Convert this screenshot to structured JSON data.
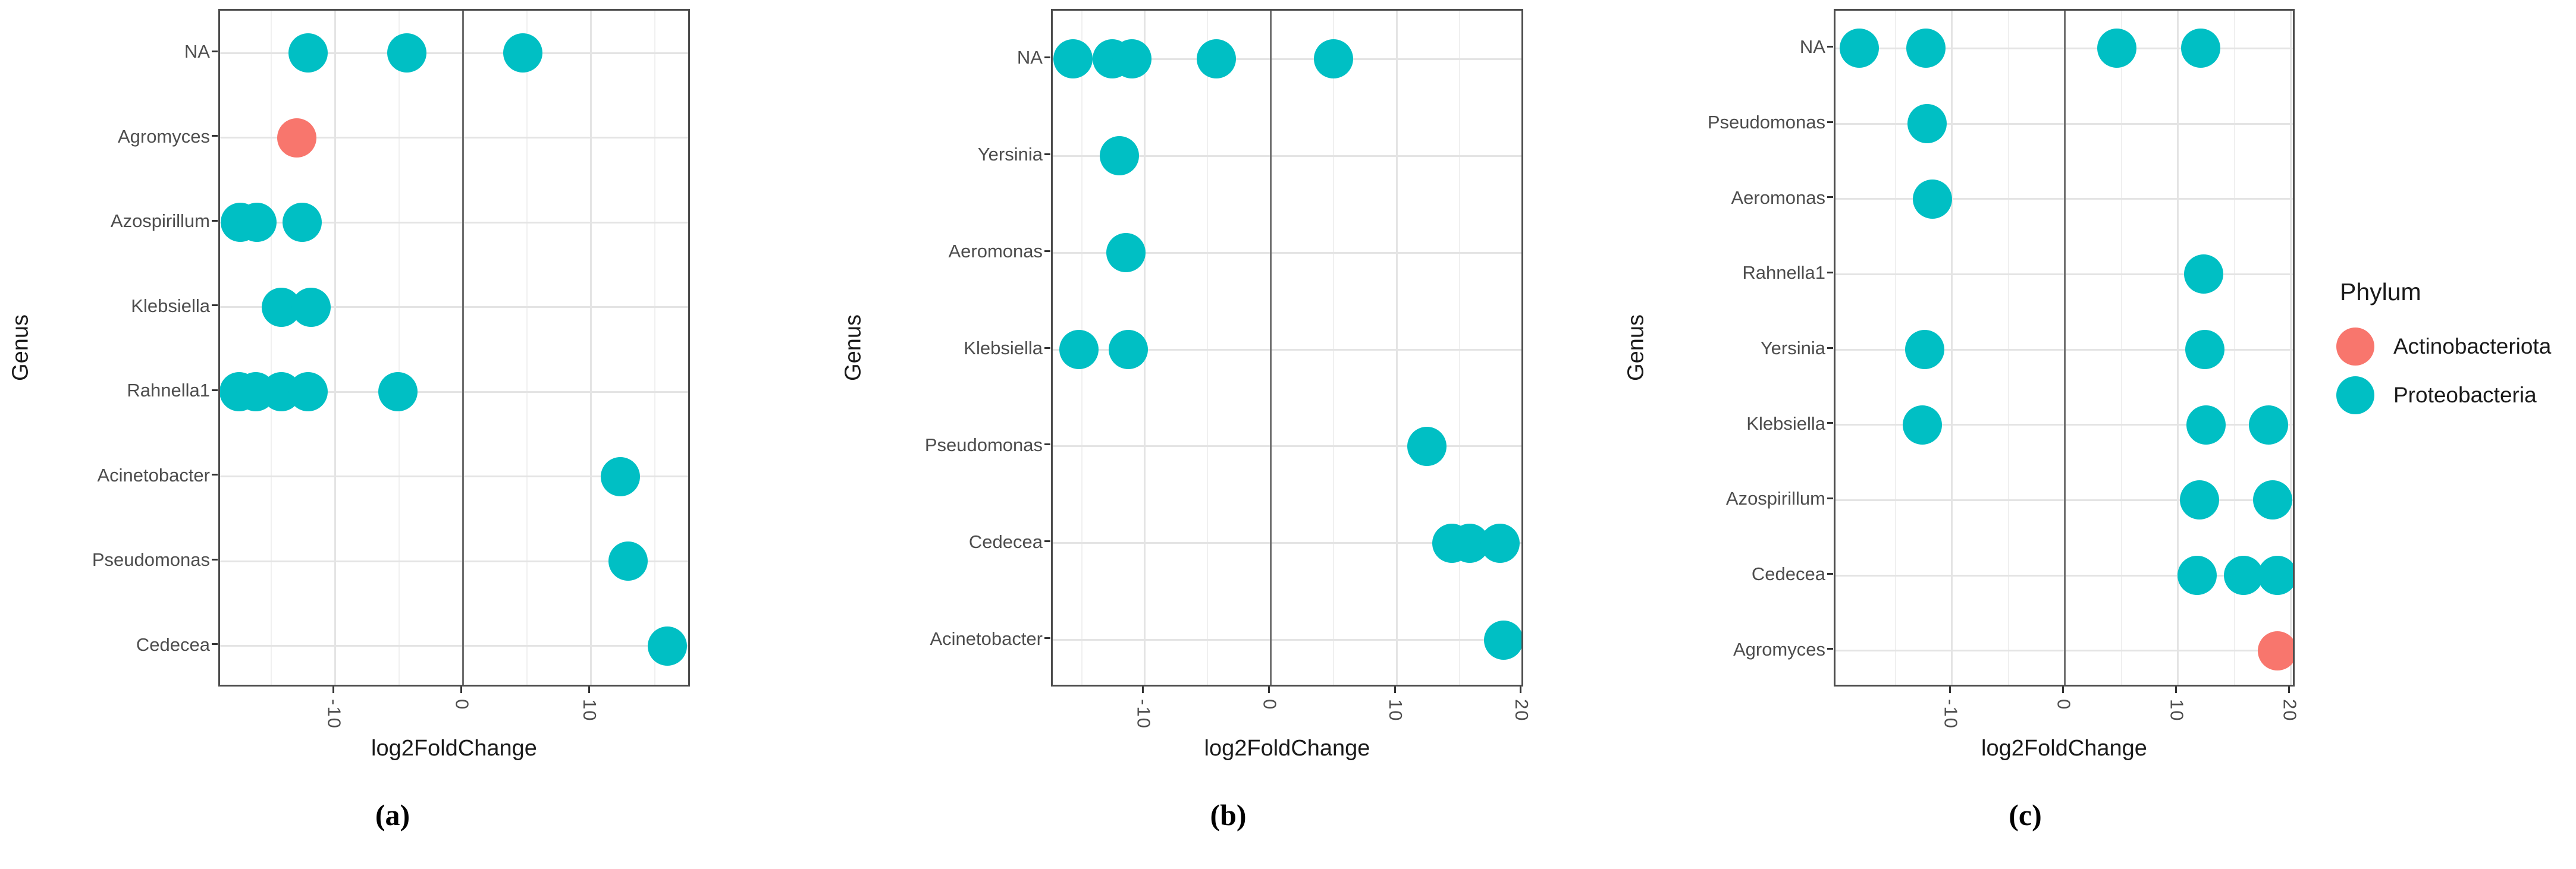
{
  "legend": {
    "title": "Phylum",
    "entries": [
      {
        "label": "Actinobacteriota",
        "color": "#F8766D"
      },
      {
        "label": "Proteobacteria",
        "color": "#00BFC4"
      }
    ]
  },
  "colors": {
    "Actinobacteriota": "#F8766D",
    "Proteobacteria": "#00BFC4",
    "zero_line": "#6f6f6f",
    "grid_major": "#e4e4e4",
    "grid_minor": "#f0f0f0",
    "panel_border": "#4d4d4d",
    "tick_text": "#4d4d4d"
  },
  "chart_data": [
    {
      "type": "scatter",
      "caption": "(a)",
      "xlabel": "log2FoldChange",
      "ylabel": "Genus",
      "xlim": [
        -19.0,
        17.9
      ],
      "x_ticks": [
        {
          "label": "-10",
          "value": -10
        },
        {
          "label": "0",
          "value": 0
        },
        {
          "label": "10",
          "value": 10
        }
      ],
      "x_minor_ticks": [
        -15,
        -5,
        5,
        15
      ],
      "zero_line": 0,
      "grid": true,
      "categories": [
        "NA",
        "Agromyces",
        "Azospirillum",
        "Klebsiella",
        "Rahnella1",
        "Acinetobacter",
        "Pseudomonas",
        "Cedecea"
      ],
      "points": [
        {
          "genus": "NA",
          "x": -12.1,
          "phylum": "Proteobacteria"
        },
        {
          "genus": "NA",
          "x": -4.4,
          "phylum": "Proteobacteria"
        },
        {
          "genus": "NA",
          "x": 4.7,
          "phylum": "Proteobacteria"
        },
        {
          "genus": "Agromyces",
          "x": -13.0,
          "phylum": "Actinobacteriota"
        },
        {
          "genus": "Azospirillum",
          "x": -17.4,
          "phylum": "Proteobacteria"
        },
        {
          "genus": "Azospirillum",
          "x": -16.1,
          "phylum": "Proteobacteria"
        },
        {
          "genus": "Azospirillum",
          "x": -12.6,
          "phylum": "Proteobacteria"
        },
        {
          "genus": "Klebsiella",
          "x": -14.2,
          "phylum": "Proteobacteria"
        },
        {
          "genus": "Klebsiella",
          "x": -11.9,
          "phylum": "Proteobacteria"
        },
        {
          "genus": "Rahnella1",
          "x": -17.5,
          "phylum": "Proteobacteria"
        },
        {
          "genus": "Rahnella1",
          "x": -16.2,
          "phylum": "Proteobacteria"
        },
        {
          "genus": "Rahnella1",
          "x": -14.2,
          "phylum": "Proteobacteria"
        },
        {
          "genus": "Rahnella1",
          "x": -12.1,
          "phylum": "Proteobacteria"
        },
        {
          "genus": "Rahnella1",
          "x": -5.1,
          "phylum": "Proteobacteria"
        },
        {
          "genus": "Acinetobacter",
          "x": 12.3,
          "phylum": "Proteobacteria"
        },
        {
          "genus": "Pseudomonas",
          "x": 12.9,
          "phylum": "Proteobacteria"
        },
        {
          "genus": "Cedecea",
          "x": 16.0,
          "phylum": "Proteobacteria"
        }
      ]
    },
    {
      "type": "scatter",
      "caption": "(b)",
      "xlabel": "log2FoldChange",
      "ylabel": "Genus",
      "xlim": [
        -17.3,
        20.2
      ],
      "x_ticks": [
        {
          "label": "-10",
          "value": -10
        },
        {
          "label": "0",
          "value": 0
        },
        {
          "label": "10",
          "value": 10
        },
        {
          "label": "20",
          "value": 20
        }
      ],
      "x_minor_ticks": [
        -15,
        -5,
        5,
        15
      ],
      "zero_line": 0,
      "grid": true,
      "categories": [
        "NA",
        "Yersinia",
        "Aeromonas",
        "Klebsiella",
        "Pseudomonas",
        "Cedecea",
        "Acinetobacter"
      ],
      "points": [
        {
          "genus": "NA",
          "x": -15.7,
          "phylum": "Proteobacteria"
        },
        {
          "genus": "NA",
          "x": -12.6,
          "phylum": "Proteobacteria"
        },
        {
          "genus": "NA",
          "x": -11.0,
          "phylum": "Proteobacteria"
        },
        {
          "genus": "NA",
          "x": -4.3,
          "phylum": "Proteobacteria"
        },
        {
          "genus": "NA",
          "x": 5.0,
          "phylum": "Proteobacteria"
        },
        {
          "genus": "Yersinia",
          "x": -12.0,
          "phylum": "Proteobacteria"
        },
        {
          "genus": "Aeromonas",
          "x": -11.5,
          "phylum": "Proteobacteria"
        },
        {
          "genus": "Klebsiella",
          "x": -15.2,
          "phylum": "Proteobacteria"
        },
        {
          "genus": "Klebsiella",
          "x": -11.3,
          "phylum": "Proteobacteria"
        },
        {
          "genus": "Pseudomonas",
          "x": 12.4,
          "phylum": "Proteobacteria"
        },
        {
          "genus": "Cedecea",
          "x": 14.4,
          "phylum": "Proteobacteria"
        },
        {
          "genus": "Cedecea",
          "x": 15.8,
          "phylum": "Proteobacteria"
        },
        {
          "genus": "Cedecea",
          "x": 18.2,
          "phylum": "Proteobacteria"
        },
        {
          "genus": "Acinetobacter",
          "x": 18.5,
          "phylum": "Proteobacteria"
        }
      ]
    },
    {
      "type": "scatter",
      "caption": "(c)",
      "xlabel": "log2FoldChange",
      "ylabel": "Genus",
      "xlim": [
        -20.3,
        20.5
      ],
      "x_ticks": [
        {
          "label": "-10",
          "value": -10
        },
        {
          "label": "0",
          "value": 0
        },
        {
          "label": "10",
          "value": 10
        },
        {
          "label": "20",
          "value": 20
        }
      ],
      "x_minor_ticks": [
        -15,
        -5,
        5,
        15
      ],
      "zero_line": 0,
      "grid": true,
      "categories": [
        "NA",
        "Pseudomonas",
        "Aeromonas",
        "Rahnella1",
        "Yersinia",
        "Klebsiella",
        "Azospirillum",
        "Cedecea",
        "Agromyces"
      ],
      "points": [
        {
          "genus": "NA",
          "x": -18.2,
          "phylum": "Proteobacteria"
        },
        {
          "genus": "NA",
          "x": -12.3,
          "phylum": "Proteobacteria"
        },
        {
          "genus": "NA",
          "x": 4.6,
          "phylum": "Proteobacteria"
        },
        {
          "genus": "NA",
          "x": 12.0,
          "phylum": "Proteobacteria"
        },
        {
          "genus": "Pseudomonas",
          "x": -12.2,
          "phylum": "Proteobacteria"
        },
        {
          "genus": "Aeromonas",
          "x": -11.7,
          "phylum": "Proteobacteria"
        },
        {
          "genus": "Rahnella1",
          "x": 12.3,
          "phylum": "Proteobacteria"
        },
        {
          "genus": "Yersinia",
          "x": -12.4,
          "phylum": "Proteobacteria"
        },
        {
          "genus": "Yersinia",
          "x": 12.4,
          "phylum": "Proteobacteria"
        },
        {
          "genus": "Klebsiella",
          "x": -12.6,
          "phylum": "Proteobacteria"
        },
        {
          "genus": "Klebsiella",
          "x": 12.5,
          "phylum": "Proteobacteria"
        },
        {
          "genus": "Klebsiella",
          "x": 18.0,
          "phylum": "Proteobacteria"
        },
        {
          "genus": "Azospirillum",
          "x": 11.9,
          "phylum": "Proteobacteria"
        },
        {
          "genus": "Azospirillum",
          "x": 18.4,
          "phylum": "Proteobacteria"
        },
        {
          "genus": "Cedecea",
          "x": 11.7,
          "phylum": "Proteobacteria"
        },
        {
          "genus": "Cedecea",
          "x": 15.8,
          "phylum": "Proteobacteria"
        },
        {
          "genus": "Cedecea",
          "x": 18.8,
          "phylum": "Proteobacteria"
        },
        {
          "genus": "Agromyces",
          "x": 18.8,
          "phylum": "Actinobacteriota"
        }
      ]
    }
  ]
}
